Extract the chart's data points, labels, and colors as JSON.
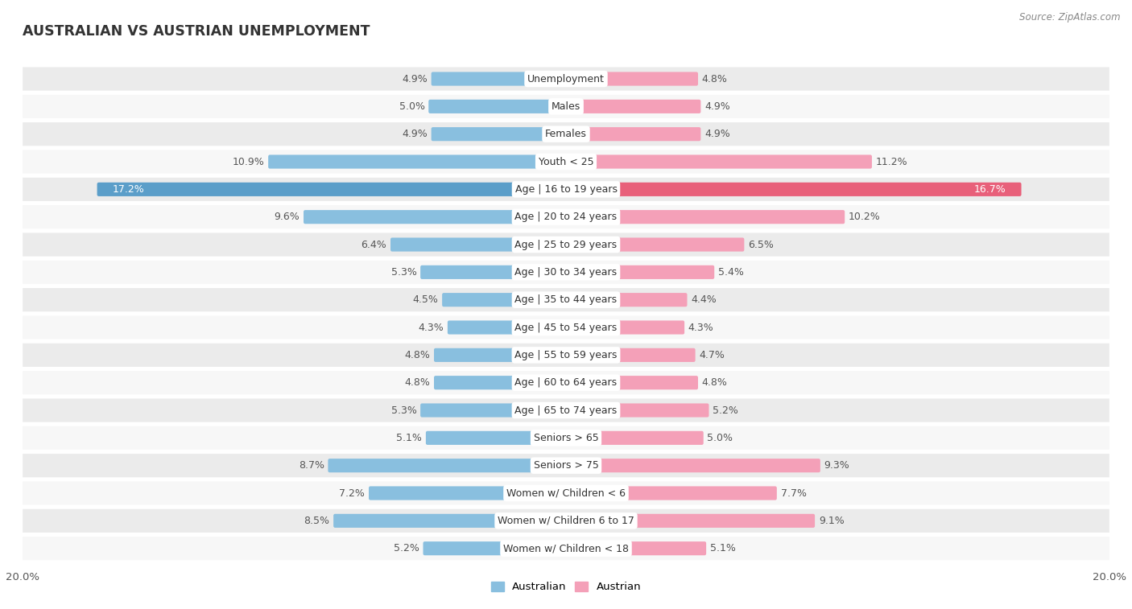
{
  "title": "AUSTRALIAN VS AUSTRIAN UNEMPLOYMENT",
  "source": "Source: ZipAtlas.com",
  "categories": [
    "Unemployment",
    "Males",
    "Females",
    "Youth < 25",
    "Age | 16 to 19 years",
    "Age | 20 to 24 years",
    "Age | 25 to 29 years",
    "Age | 30 to 34 years",
    "Age | 35 to 44 years",
    "Age | 45 to 54 years",
    "Age | 55 to 59 years",
    "Age | 60 to 64 years",
    "Age | 65 to 74 years",
    "Seniors > 65",
    "Seniors > 75",
    "Women w/ Children < 6",
    "Women w/ Children 6 to 17",
    "Women w/ Children < 18"
  ],
  "australian": [
    4.9,
    5.0,
    4.9,
    10.9,
    17.2,
    9.6,
    6.4,
    5.3,
    4.5,
    4.3,
    4.8,
    4.8,
    5.3,
    5.1,
    8.7,
    7.2,
    8.5,
    5.2
  ],
  "austrian": [
    4.8,
    4.9,
    4.9,
    11.2,
    16.7,
    10.2,
    6.5,
    5.4,
    4.4,
    4.3,
    4.7,
    4.8,
    5.2,
    5.0,
    9.3,
    7.7,
    9.1,
    5.1
  ],
  "australian_color": "#89bfdf",
  "austrian_color": "#f4a0b8",
  "australian_highlight": "#5b9ec9",
  "austrian_highlight": "#e8607a",
  "row_color_even": "#ebebeb",
  "row_color_odd": "#f7f7f7",
  "bg_color": "#ffffff",
  "max_val": 20.0,
  "highlight_idx": 4,
  "label_fontsize": 9.0,
  "title_fontsize": 12.5,
  "source_fontsize": 8.5,
  "value_fontsize": 9.0
}
